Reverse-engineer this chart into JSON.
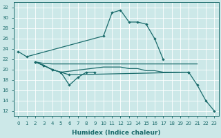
{
  "title": "",
  "xlabel": "Humidex (Indice chaleur)",
  "ylabel": "",
  "xlim": [
    -0.5,
    23.5
  ],
  "ylim": [
    11,
    33
  ],
  "yticks": [
    12,
    14,
    16,
    18,
    20,
    22,
    24,
    26,
    28,
    30,
    32
  ],
  "xticks": [
    0,
    1,
    2,
    3,
    4,
    5,
    6,
    7,
    8,
    9,
    10,
    11,
    12,
    13,
    14,
    15,
    16,
    17,
    18,
    19,
    20,
    21,
    22,
    23
  ],
  "bg_color": "#cce8e8",
  "line_color": "#1a6b6b",
  "grid_color": "#ffffff",
  "series1_x": [
    0,
    1,
    10,
    11,
    12,
    13,
    14,
    15,
    16,
    17
  ],
  "series1_y": [
    23.5,
    22.5,
    26.5,
    31.0,
    31.5,
    29.2,
    29.2,
    28.8,
    26.0,
    22.0
  ],
  "series2_x": [
    2,
    3,
    4,
    5,
    10,
    11,
    12,
    13,
    14,
    15,
    16,
    17,
    18,
    19,
    20,
    21
  ],
  "series2_y": [
    21.5,
    21.2,
    21.1,
    21.1,
    21.1,
    21.1,
    21.1,
    21.1,
    21.1,
    21.1,
    21.1,
    21.1,
    21.1,
    21.1,
    21.1,
    21.1
  ],
  "series3_x": [
    2,
    3,
    4,
    5,
    6,
    7,
    8,
    9
  ],
  "series3_y": [
    21.5,
    20.8,
    20.0,
    19.5,
    17.0,
    18.5,
    19.5,
    19.5
  ],
  "series4_x": [
    2,
    3,
    4,
    5,
    6,
    20,
    21,
    22,
    23
  ],
  "series4_y": [
    21.5,
    20.8,
    20.0,
    19.5,
    19.0,
    19.5,
    17.0,
    14.0,
    12.0
  ],
  "series5_x": [
    2,
    3,
    4,
    5,
    10,
    11,
    12,
    13,
    14,
    15,
    16,
    17,
    18,
    19,
    20
  ],
  "series5_y": [
    21.5,
    20.8,
    20.0,
    19.5,
    20.5,
    20.5,
    20.5,
    20.2,
    20.2,
    19.8,
    19.8,
    19.5,
    19.5,
    19.5,
    19.5
  ]
}
